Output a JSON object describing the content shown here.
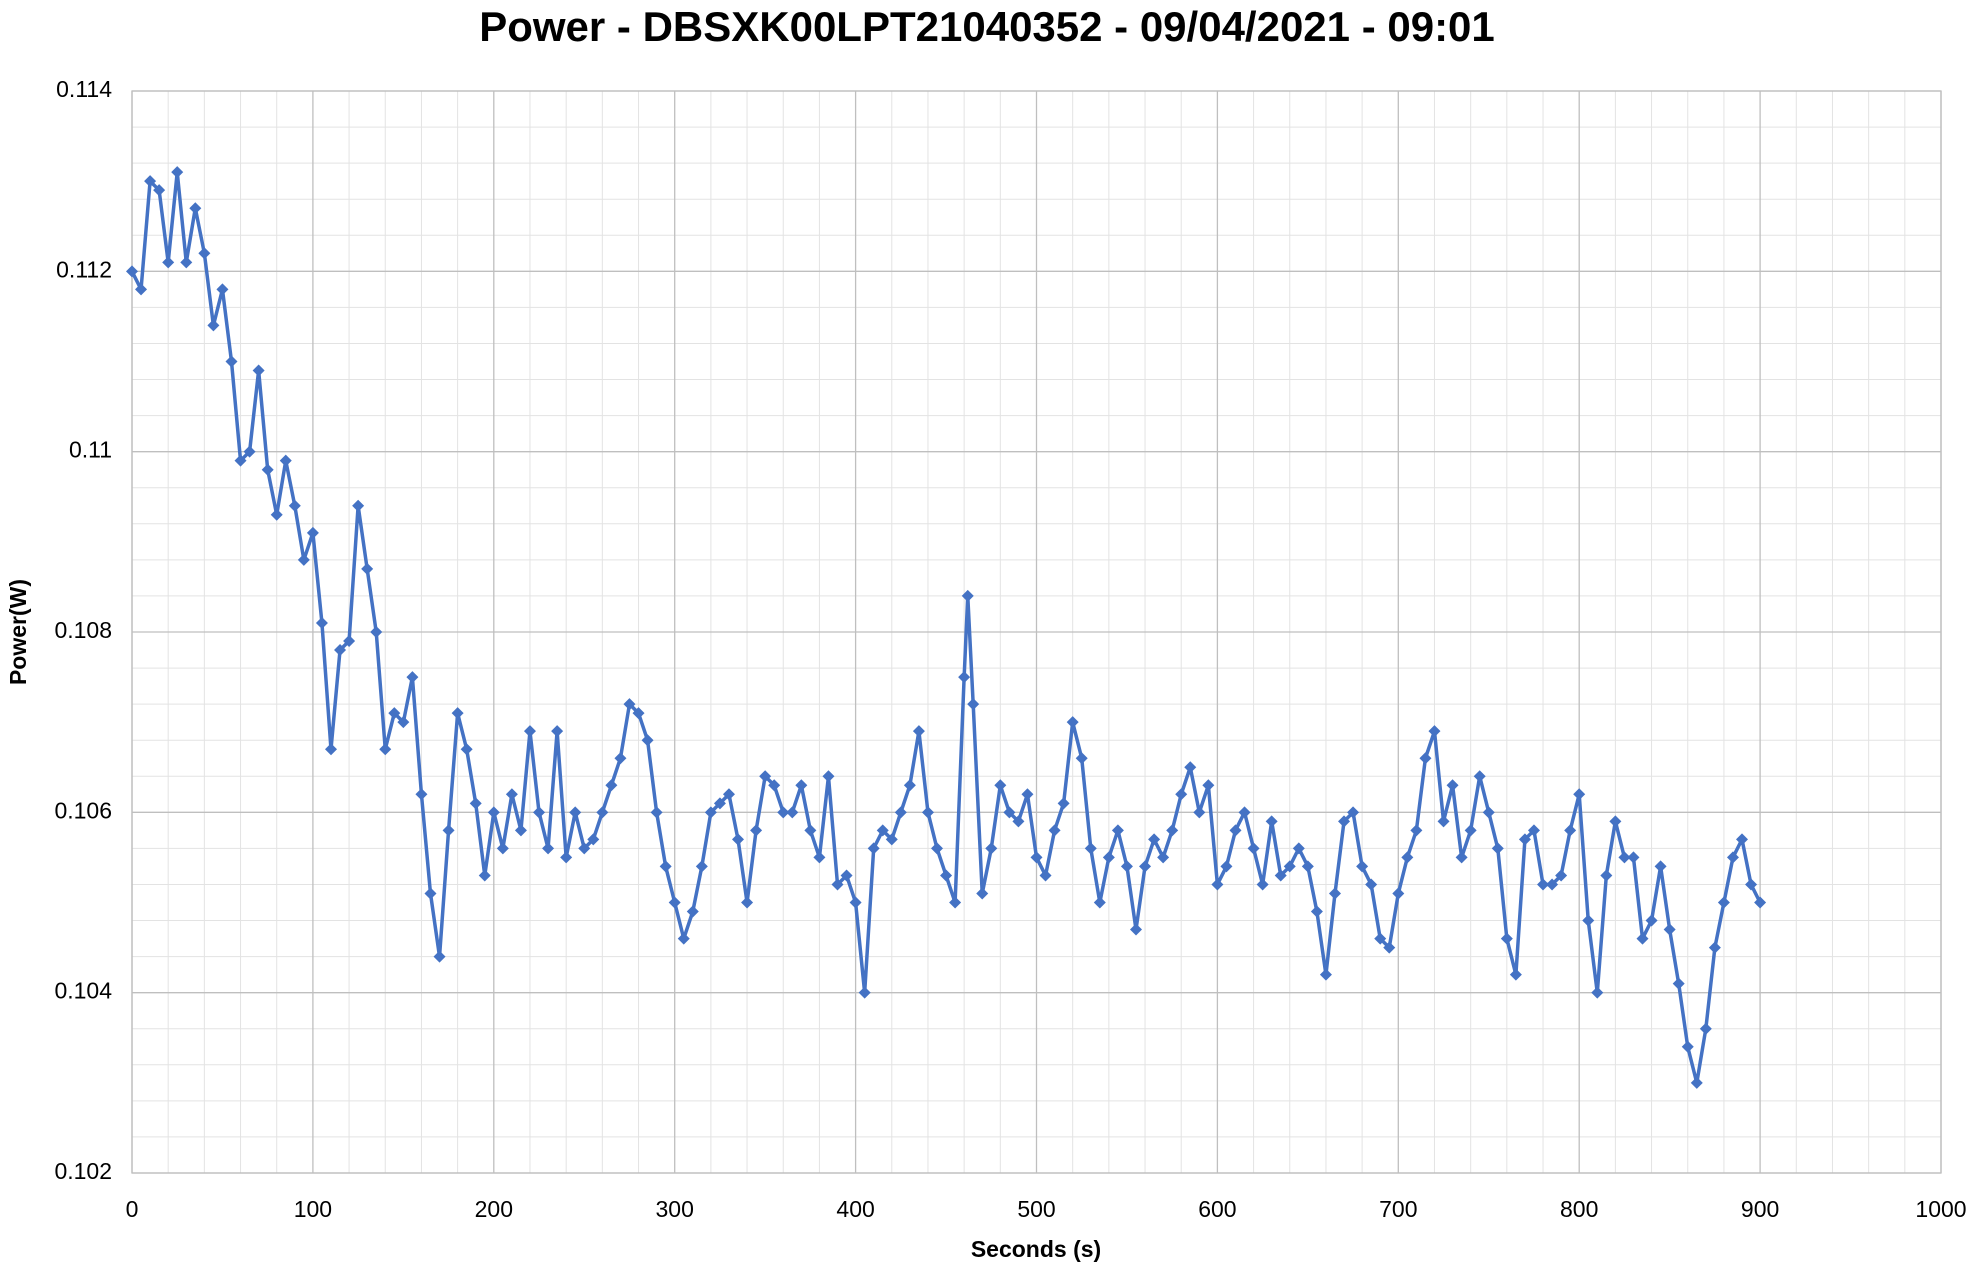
{
  "chart_data": {
    "type": "line",
    "title": "Power - DBSXK00LPT21040352 - 09/04/2021 - 09:01",
    "x_label": "Seconds (s)",
    "y_label": "Power(W)",
    "color": "#4472c4",
    "marker": "diamond",
    "grid": true,
    "minor_grid": true,
    "xlim": [
      0,
      1000
    ],
    "xticks": [
      0,
      100,
      200,
      300,
      400,
      500,
      600,
      700,
      800,
      900,
      1000
    ],
    "ylim": [
      0.102,
      0.114
    ],
    "yticks": [
      0.102,
      0.104,
      0.106,
      0.108,
      0.11,
      0.112,
      0.114
    ],
    "x": [
      0,
      5,
      10,
      15,
      20,
      25,
      30,
      35,
      40,
      45,
      50,
      55,
      60,
      65,
      70,
      75,
      80,
      85,
      90,
      95,
      100,
      105,
      110,
      115,
      120,
      125,
      130,
      135,
      140,
      145,
      150,
      155,
      160,
      165,
      170,
      175,
      180,
      185,
      190,
      195,
      200,
      205,
      210,
      215,
      220,
      225,
      230,
      235,
      240,
      245,
      250,
      255,
      260,
      265,
      270,
      275,
      280,
      285,
      290,
      295,
      300,
      305,
      310,
      315,
      320,
      325,
      330,
      335,
      340,
      345,
      350,
      355,
      360,
      365,
      370,
      375,
      380,
      385,
      390,
      395,
      400,
      405,
      410,
      415,
      420,
      425,
      430,
      435,
      440,
      445,
      450,
      455,
      460,
      462,
      465,
      470,
      475,
      480,
      485,
      490,
      495,
      500,
      505,
      510,
      515,
      520,
      525,
      530,
      535,
      540,
      545,
      550,
      555,
      560,
      565,
      570,
      575,
      580,
      585,
      590,
      595,
      600,
      605,
      610,
      615,
      620,
      625,
      630,
      635,
      640,
      645,
      650,
      655,
      660,
      665,
      670,
      675,
      680,
      685,
      690,
      695,
      700,
      705,
      710,
      715,
      720,
      725,
      730,
      735,
      740,
      745,
      750,
      755,
      760,
      765,
      770,
      775,
      780,
      785,
      790,
      795,
      800,
      805,
      810,
      815,
      820,
      825,
      830,
      835,
      840,
      845,
      850,
      855,
      860,
      865,
      870,
      875,
      880,
      885,
      890,
      895,
      900
    ],
    "values": [
      0.112,
      0.1118,
      0.113,
      0.1129,
      0.1121,
      0.1131,
      0.1121,
      0.1127,
      0.1122,
      0.1114,
      0.1118,
      0.111,
      0.1099,
      0.11,
      0.1109,
      0.1098,
      0.1093,
      0.1099,
      0.1094,
      0.1088,
      0.1091,
      0.1081,
      0.1067,
      0.1078,
      0.1079,
      0.1094,
      0.1087,
      0.108,
      0.1067,
      0.1071,
      0.107,
      0.1075,
      0.1062,
      0.1051,
      0.1044,
      0.1058,
      0.1071,
      0.1067,
      0.1061,
      0.1053,
      0.106,
      0.1056,
      0.1062,
      0.1058,
      0.1069,
      0.106,
      0.1056,
      0.1069,
      0.1055,
      0.106,
      0.1056,
      0.1057,
      0.106,
      0.1063,
      0.1066,
      0.1072,
      0.1071,
      0.1068,
      0.106,
      0.1054,
      0.105,
      0.1046,
      0.1049,
      0.1054,
      0.106,
      0.1061,
      0.1062,
      0.1057,
      0.105,
      0.1058,
      0.1064,
      0.1063,
      0.106,
      0.106,
      0.1063,
      0.1058,
      0.1055,
      0.1064,
      0.1052,
      0.1053,
      0.105,
      0.104,
      0.1056,
      0.1058,
      0.1057,
      0.106,
      0.1063,
      0.1069,
      0.106,
      0.1056,
      0.1053,
      0.105,
      0.1075,
      0.1084,
      0.1072,
      0.1051,
      0.1056,
      0.1063,
      0.106,
      0.1059,
      0.1062,
      0.1055,
      0.1053,
      0.1058,
      0.1061,
      0.107,
      0.1066,
      0.1056,
      0.105,
      0.1055,
      0.1058,
      0.1054,
      0.1047,
      0.1054,
      0.1057,
      0.1055,
      0.1058,
      0.1062,
      0.1065,
      0.106,
      0.1063,
      0.1052,
      0.1054,
      0.1058,
      0.106,
      0.1056,
      0.1052,
      0.1059,
      0.1053,
      0.1054,
      0.1056,
      0.1054,
      0.1049,
      0.1042,
      0.1051,
      0.1059,
      0.106,
      0.1054,
      0.1052,
      0.1046,
      0.1045,
      0.1051,
      0.1055,
      0.1058,
      0.1066,
      0.1069,
      0.1059,
      0.1063,
      0.1055,
      0.1058,
      0.1064,
      0.106,
      0.1056,
      0.1046,
      0.1042,
      0.1057,
      0.1058,
      0.1052,
      0.1052,
      0.1053,
      0.1058,
      0.1062,
      0.1048,
      0.104,
      0.1053,
      0.1059,
      0.1055,
      0.1055,
      0.1046,
      0.1048,
      0.1054,
      0.1047,
      0.1041,
      0.1034,
      0.103,
      0.1036,
      0.1045,
      0.105,
      0.1055,
      0.1057,
      0.1052,
      0.105
    ]
  }
}
